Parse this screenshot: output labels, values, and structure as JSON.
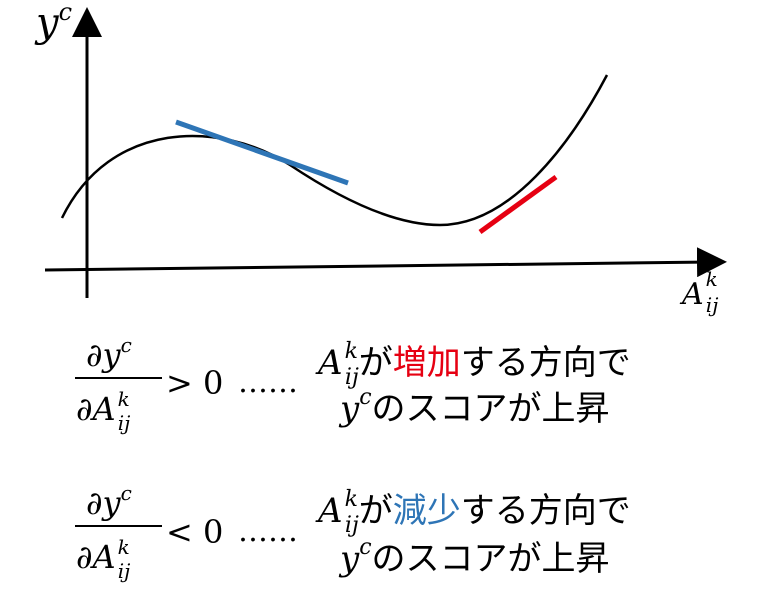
{
  "axes": {
    "y_label": {
      "base": "y",
      "sup": "c"
    },
    "x_label": {
      "base": "A",
      "sup": "k",
      "sub": "ij"
    }
  },
  "tangents": {
    "negative_slope_color": "#2e75b6",
    "positive_slope_color": "#e60012"
  },
  "rules": [
    {
      "numerator": "∂y",
      "numerator_sup": "c",
      "denominator": "∂A",
      "denominator_sup": "k",
      "denominator_sub": "ij",
      "comparison": "> 0",
      "ellipsis": "……",
      "var_base": "A",
      "var_sup": "k",
      "var_sub": "ij",
      "particle": "が",
      "action": "増加",
      "action_color": "#e60012",
      "suffix": "する方向で",
      "target_base": "y",
      "target_sup": "c",
      "result": "のスコアが上昇"
    },
    {
      "numerator": "∂y",
      "numerator_sup": "c",
      "denominator": "∂A",
      "denominator_sup": "k",
      "denominator_sub": "ij",
      "comparison": "< 0",
      "ellipsis": "……",
      "var_base": "A",
      "var_sup": "k",
      "var_sub": "ij",
      "particle": "が",
      "action": "減少",
      "action_color": "#2e75b6",
      "suffix": "する方向で",
      "target_base": "y",
      "target_sup": "c",
      "result": "のスコアが上昇"
    }
  ]
}
